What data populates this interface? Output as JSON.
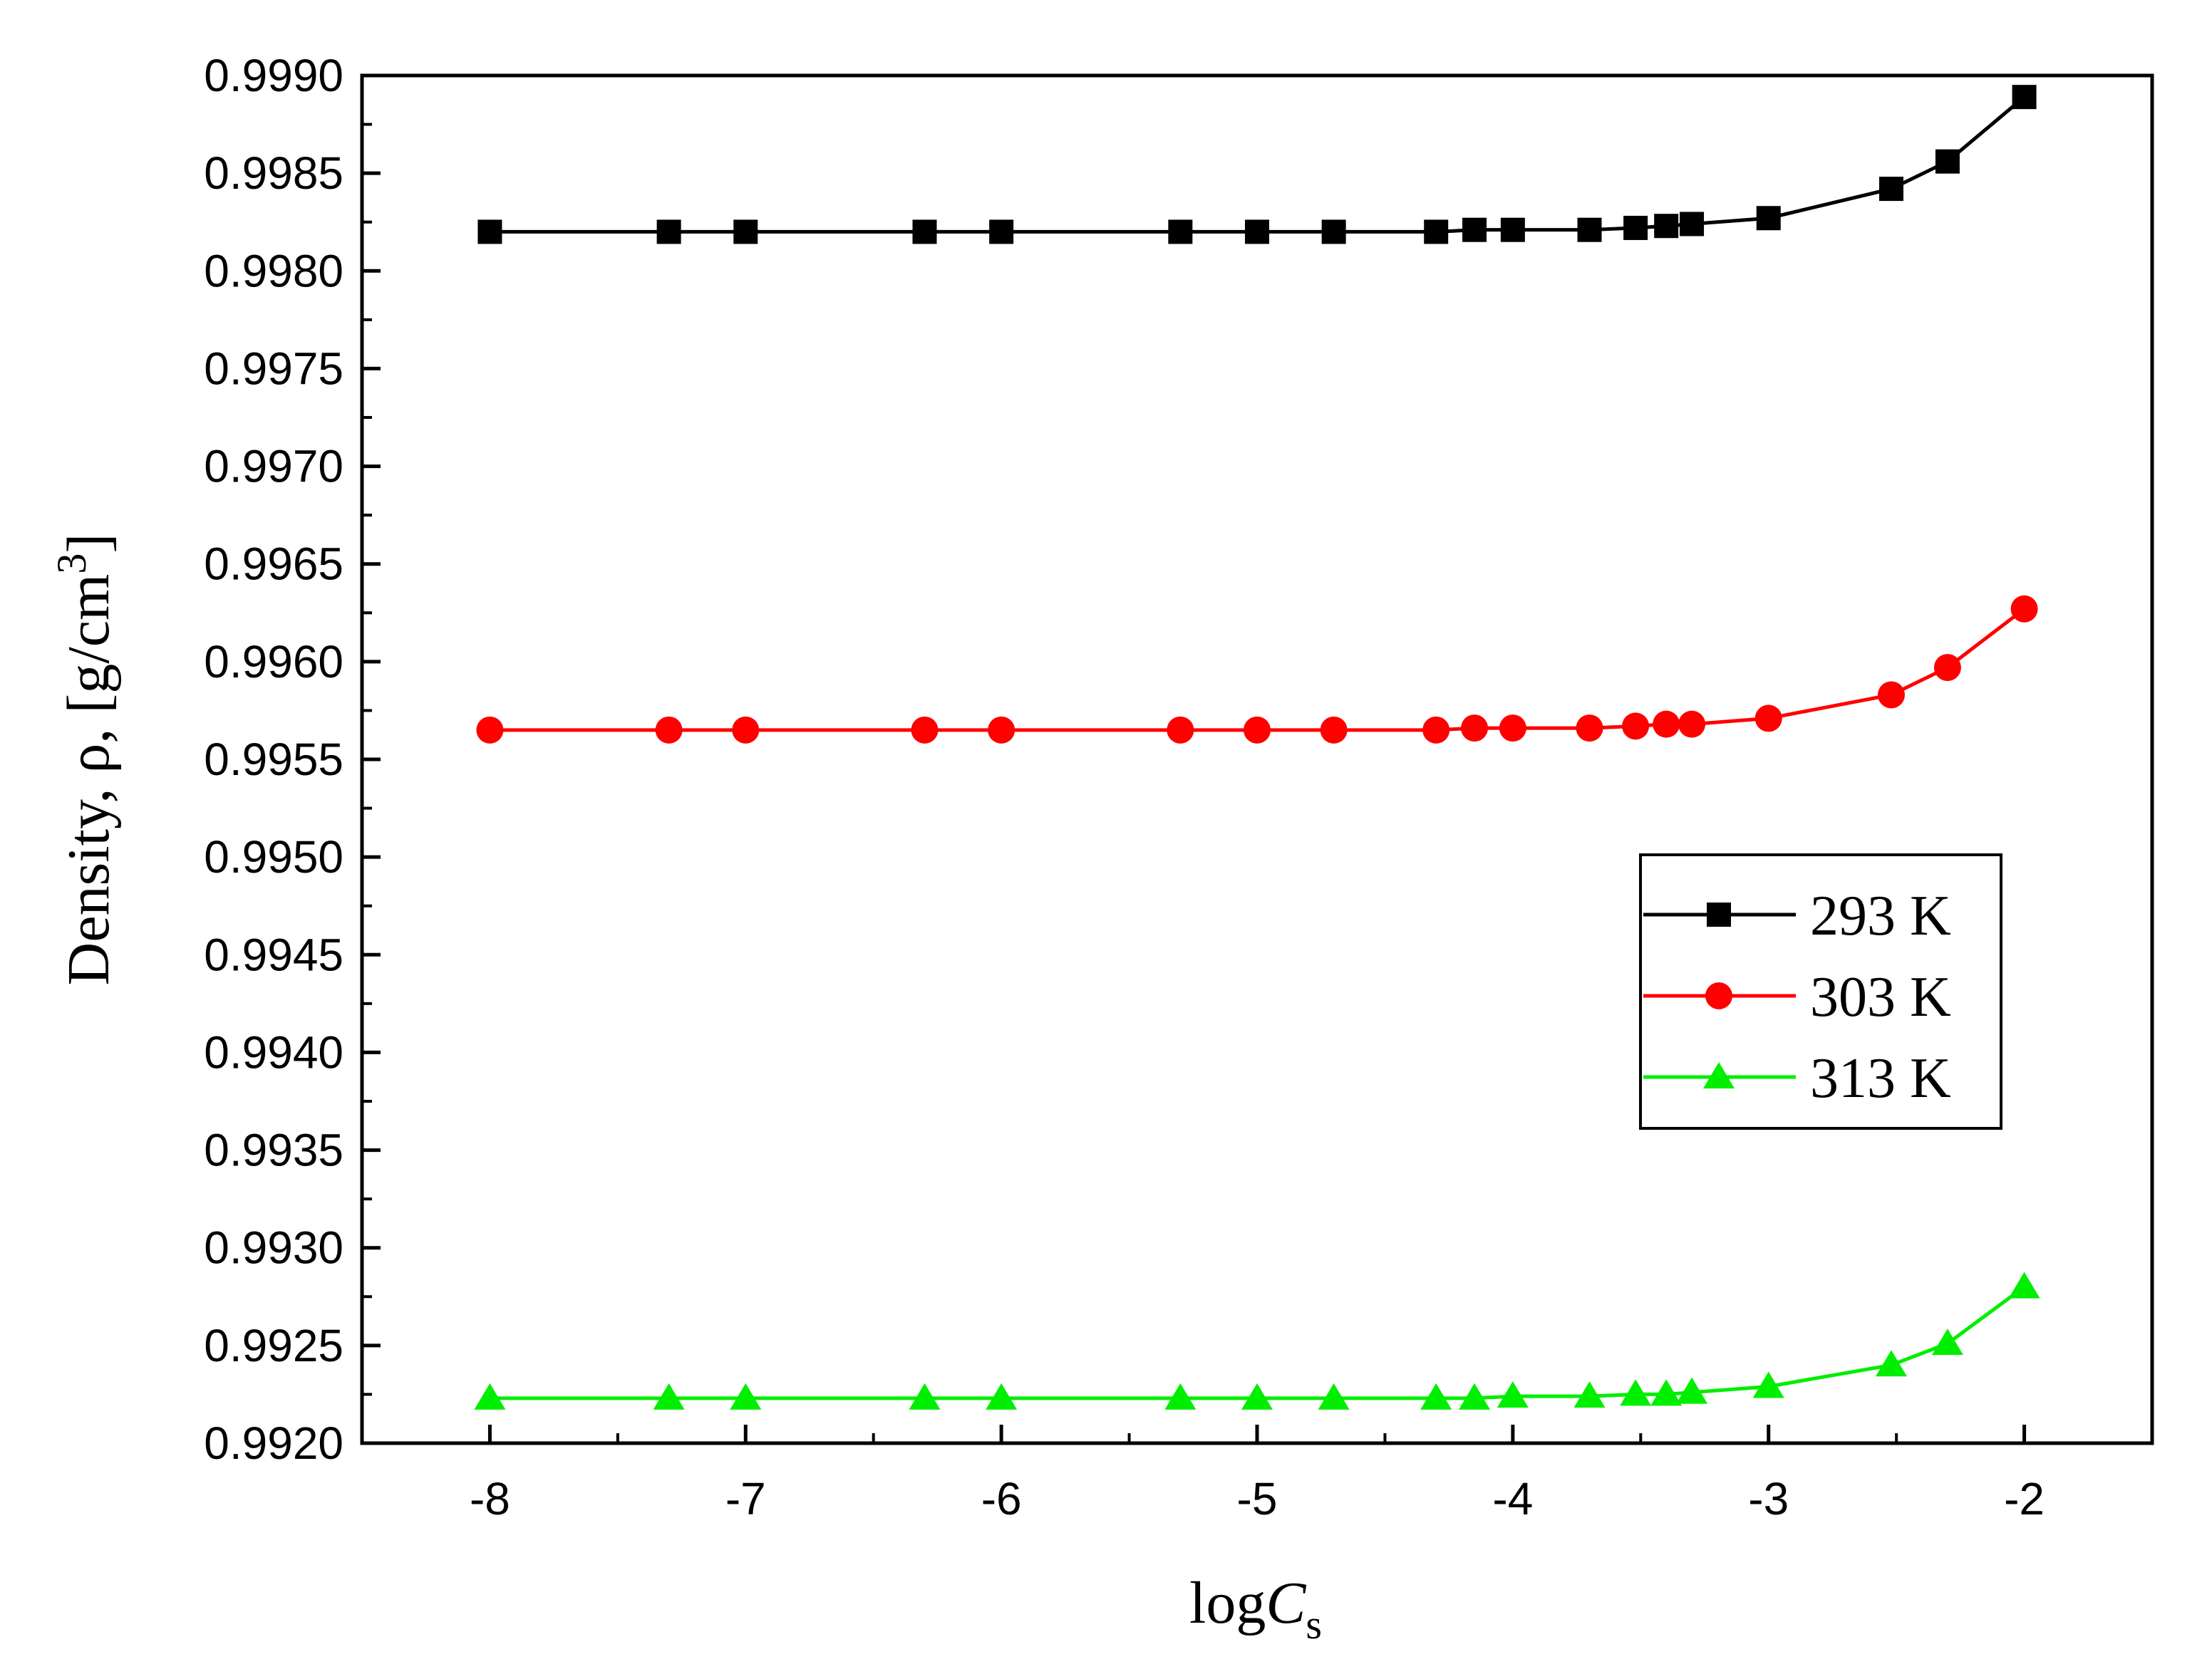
{
  "chart_data": {
    "type": "line",
    "title": "",
    "xlabel_main": "log",
    "xlabel_italic": "C",
    "xlabel_sub": "s",
    "ylabel_main": "Density, ρ, [g/cm",
    "ylabel_sup": "3",
    "ylabel_close": "]",
    "xlim": [
      -8.5,
      -1.5
    ],
    "ylim": [
      0.992,
      0.999
    ],
    "xticks": [
      -8,
      -7,
      -6,
      -5,
      -4,
      -3,
      -2
    ],
    "xtick_labels": [
      "-8",
      "-7",
      "-6",
      "-5",
      "-4",
      "-3",
      "-2"
    ],
    "yticks": [
      0.992,
      0.9925,
      0.993,
      0.9935,
      0.994,
      0.9945,
      0.995,
      0.9955,
      0.996,
      0.9965,
      0.997,
      0.9975,
      0.998,
      0.9985,
      0.999
    ],
    "ytick_labels": [
      "0.9920",
      "0.9925",
      "0.9930",
      "0.9935",
      "0.9940",
      "0.9945",
      "0.9950",
      "0.9955",
      "0.9960",
      "0.9965",
      "0.9970",
      "0.9975",
      "0.9980",
      "0.9985",
      "0.9990"
    ],
    "grid": false,
    "legend_position": "center-right",
    "x": [
      -8.0,
      -7.3,
      -7.0,
      -6.3,
      -6.0,
      -5.3,
      -5.0,
      -4.7,
      -4.3,
      -4.15,
      -4.0,
      -3.7,
      -3.52,
      -3.4,
      -3.3,
      -3.0,
      -2.52,
      -2.3,
      -2.0
    ],
    "series": [
      {
        "name": "293 K",
        "color": "#000000",
        "marker": "square",
        "values": [
          0.9982,
          0.9982,
          0.9982,
          0.9982,
          0.9982,
          0.9982,
          0.9982,
          0.9982,
          0.9982,
          0.99821,
          0.99821,
          0.99821,
          0.99822,
          0.99823,
          0.99824,
          0.99827,
          0.99842,
          0.99856,
          0.99889
        ]
      },
      {
        "name": "303 K",
        "color": "#ff0000",
        "marker": "circle",
        "values": [
          0.99565,
          0.99565,
          0.99565,
          0.99565,
          0.99565,
          0.99565,
          0.99565,
          0.99565,
          0.99565,
          0.99566,
          0.99566,
          0.99566,
          0.99567,
          0.99568,
          0.99568,
          0.99571,
          0.99583,
          0.99597,
          0.99627
        ]
      },
      {
        "name": "313 K",
        "color": "#00ee00",
        "marker": "triangle",
        "values": [
          0.99223,
          0.99223,
          0.99223,
          0.99223,
          0.99223,
          0.99223,
          0.99223,
          0.99223,
          0.99223,
          0.99223,
          0.99224,
          0.99224,
          0.99225,
          0.99225,
          0.99226,
          0.99229,
          0.9924,
          0.99251,
          0.9928
        ]
      }
    ]
  }
}
